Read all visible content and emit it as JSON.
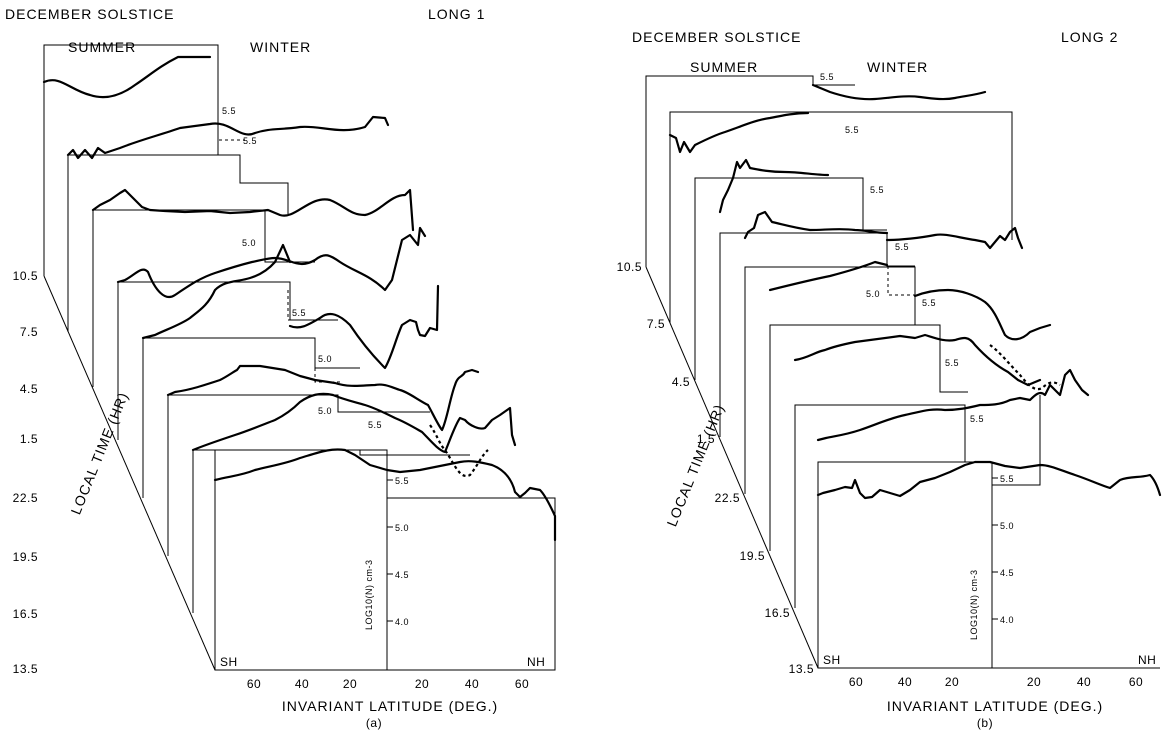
{
  "chart_data": [
    {
      "type": "line",
      "panel": "(a)",
      "title": "DECEMBER   SOLSTICE",
      "longitude_label": "LONG  1",
      "summer_label": "SUMMER",
      "winter_label": "WINTER",
      "xlabel": "INVARIANT  LATITUDE  (DEG.)",
      "ylabel": "LOCAL  TIME  (HR)",
      "zlabel": "LOG10(N) cm-3",
      "sh_label": "SH",
      "nh_label": "NH",
      "x_ticks": [
        "60",
        "40",
        "20",
        "20",
        "40",
        "60"
      ],
      "z_ticks": [
        "5.5",
        "5.0",
        "4.5",
        "4.0"
      ],
      "local_times": [
        "13.5",
        "16.5",
        "19.5",
        "22.5",
        "1.5",
        "4.5",
        "7.5",
        "10.5"
      ],
      "slice_labels": [
        "5.5",
        "5.0",
        "5.5",
        "5.0",
        "5.0",
        "5.5",
        "5.5",
        "5.5"
      ],
      "ylim": [
        3.8,
        5.7
      ],
      "series": [
        {
          "local_time": "13.5",
          "invariant_latitude": [
            -70,
            -60,
            -50,
            -40,
            -30,
            -20,
            -10,
            0,
            10,
            20,
            30,
            40,
            50,
            60,
            70
          ],
          "log10_density": [
            5.4,
            5.42,
            5.44,
            5.48,
            5.52,
            5.56,
            5.6,
            5.33,
            5.32,
            5.32,
            5.33,
            5.31,
            5.3,
            5.2,
            4.98
          ]
        },
        {
          "local_time": "16.5",
          "invariant_latitude": [
            -70,
            -60,
            -50,
            -40,
            -30,
            -20,
            -10,
            0,
            10,
            20,
            30,
            40,
            50,
            60,
            70
          ],
          "log10_density": [
            5.3,
            5.32,
            5.35,
            5.38,
            5.42,
            5.45,
            5.58,
            5.35,
            5.32,
            5.3,
            5.18,
            4.95,
            5.08,
            5.28,
            5.05
          ]
        },
        {
          "local_time": "19.5",
          "invariant_latitude": [
            -70,
            -60,
            -50,
            -40,
            -30,
            -20,
            -10,
            0,
            10,
            20,
            30,
            40,
            50,
            60,
            70
          ],
          "log10_density": [
            5.5,
            5.52,
            5.52,
            5.55,
            5.56,
            5.58,
            5.52,
            5.46,
            5.44,
            5.43,
            5.42,
            5.3,
            5.05,
            5.55,
            5.55
          ]
        },
        {
          "local_time": "22.5",
          "invariant_latitude": [
            -70,
            -60,
            -50,
            -40,
            -30,
            -20,
            -10,
            0,
            10,
            20,
            30,
            40,
            50,
            60,
            70
          ],
          "log10_density": [
            5.4,
            5.42,
            5.45,
            5.48,
            5.55,
            5.62,
            5.5,
            5.55,
            5.45,
            5.3,
            5.5,
            5.55,
            5.4,
            5.55,
            5.65
          ]
        },
        {
          "local_time": "1.5",
          "invariant_latitude": [
            -70,
            -60,
            -50,
            -40,
            -30,
            -20,
            -10,
            0,
            10,
            20,
            30,
            40,
            50,
            60,
            70
          ],
          "log10_density": [
            5.48,
            5.5,
            5.4,
            5.42,
            5.48,
            5.52,
            5.55,
            5.42,
            5.48,
            5.5,
            5.42,
            5.3,
            5.12,
            5.45,
            5.55
          ]
        },
        {
          "local_time": "4.5",
          "invariant_latitude": [
            -70,
            -60,
            -50,
            -40,
            -30,
            -20,
            -10,
            0,
            10,
            20,
            30,
            40,
            50,
            60,
            70
          ],
          "log10_density": [
            5.55,
            5.56,
            5.58,
            5.55,
            5.54,
            5.55,
            5.5,
            5.4,
            5.38,
            5.42,
            5.4,
            5.3,
            5.35,
            5.45,
            5.55
          ]
        },
        {
          "local_time": "7.5",
          "invariant_latitude": [
            -70,
            -60,
            -50,
            -40,
            -30,
            -20,
            -10,
            0,
            10,
            20,
            30,
            40,
            50,
            60,
            70
          ],
          "log10_density": [
            5.3,
            5.32,
            5.3,
            5.35,
            5.4,
            5.45,
            5.5,
            5.4,
            5.45,
            5.48,
            5.5,
            5.45,
            5.4,
            5.35,
            5.55
          ]
        },
        {
          "local_time": "10.5",
          "invariant_latitude": [
            -70,
            -60,
            -50,
            -40,
            -30,
            -20,
            -10,
            0,
            10,
            20,
            30,
            40,
            50,
            60,
            70
          ],
          "log10_density": [
            5.55,
            5.52,
            5.48,
            5.46,
            5.5,
            5.55,
            5.6,
            5.4,
            5.42,
            5.45,
            5.45,
            5.44,
            5.45,
            5.42,
            5.45
          ]
        }
      ],
      "caption": "(a)"
    },
    {
      "type": "line",
      "panel": "(b)",
      "title": "DECEMBER   SOLSTICE",
      "longitude_label": "LONG  2",
      "summer_label": "SUMMER",
      "winter_label": "WINTER",
      "xlabel": "INVARIANT  LATITUDE  (DEG.)",
      "ylabel": "LOCAL  TIME  (HR)",
      "zlabel": "LOG10(N) cm-3",
      "sh_label": "SH",
      "nh_label": "NH",
      "x_ticks": [
        "60",
        "40",
        "20",
        "20",
        "40",
        "60"
      ],
      "z_ticks": [
        "5.5",
        "5.0",
        "4.5",
        "4.0"
      ],
      "local_times": [
        "13.5",
        "16.5",
        "19.5",
        "22.5",
        "1.5",
        "4.5",
        "7.5",
        "10.5"
      ],
      "slice_labels": [
        "5.5",
        "5.5",
        "5.5",
        "5.0",
        "5.5",
        "5.5",
        "5.5",
        "5.5"
      ],
      "ylim": [
        3.8,
        5.7
      ],
      "series": [
        {
          "local_time": "13.5",
          "invariant_latitude": [
            -70,
            -60,
            -50,
            -40,
            -30,
            -20,
            -10,
            0,
            10,
            20,
            30,
            40,
            50,
            60,
            70
          ],
          "log10_density": [
            5.55,
            5.45,
            5.4,
            5.48,
            5.52,
            5.55,
            5.62,
            5.6,
            5.52,
            5.46,
            5.42,
            5.4,
            5.45,
            5.48,
            5.4
          ]
        },
        {
          "local_time": "16.5",
          "invariant_latitude": [
            -70,
            -60,
            -50,
            -40,
            -30,
            -20,
            -10,
            0,
            10,
            20,
            30,
            40,
            50,
            60,
            70
          ],
          "log10_density": [
            5.4,
            5.42,
            5.44,
            5.46,
            5.5,
            5.55,
            5.58,
            5.52,
            5.5,
            5.48,
            5.45,
            5.4,
            5.42,
            5.4,
            5.38
          ]
        },
        {
          "local_time": "19.5",
          "invariant_latitude": [
            -70,
            -60,
            -50,
            -40,
            -30,
            -20,
            -10,
            0,
            10,
            20,
            30,
            40,
            50,
            60,
            70
          ],
          "log10_density": [
            5.42,
            5.44,
            5.5,
            5.52,
            5.55,
            5.58,
            5.56,
            5.5,
            5.46,
            5.44,
            5.4,
            5.32,
            5.45,
            5.4,
            5.35
          ]
        },
        {
          "local_time": "22.5",
          "invariant_latitude": [
            -70,
            -60,
            -50,
            -40,
            -30,
            -20,
            -10,
            0,
            10,
            20,
            30,
            40,
            50,
            60,
            70
          ],
          "log10_density": [
            5.5,
            5.52,
            5.54,
            5.55,
            5.56,
            5.58,
            5.56,
            5.5,
            5.4,
            5.3,
            5.35,
            5.3,
            5.2,
            5.38,
            5.3
          ]
        },
        {
          "local_time": "1.5",
          "invariant_latitude": [
            -70,
            -60,
            -50,
            -40,
            -30,
            -20,
            -10,
            0,
            10,
            20,
            30,
            40,
            50,
            60,
            70
          ],
          "log10_density": [
            5.52,
            5.55,
            5.56,
            5.54,
            5.55,
            5.58,
            5.52,
            5.5,
            5.54,
            5.48,
            5.35,
            5.25,
            5.35,
            5.3,
            5.4
          ]
        },
        {
          "local_time": "4.5",
          "invariant_latitude": [
            -70,
            -60,
            -50,
            -40,
            -30,
            -20,
            -10,
            0,
            10,
            20,
            30,
            40,
            50,
            60,
            70
          ],
          "log10_density": [
            5.45,
            5.6,
            5.58,
            5.55,
            5.52,
            5.5,
            5.52,
            5.45,
            5.4,
            5.42,
            5.45,
            5.38,
            5.35,
            5.4,
            5.5
          ]
        },
        {
          "local_time": "7.5",
          "invariant_latitude": [
            -70,
            -60,
            -50,
            -40,
            -30,
            -20,
            -10,
            0,
            10,
            20,
            30,
            40,
            50,
            60,
            70
          ],
          "log10_density": [
            5.2,
            5.55,
            5.5,
            5.48,
            5.5,
            5.52,
            5.5,
            5.4,
            5.4,
            5.42,
            5.44,
            5.42,
            5.4,
            5.35,
            5.45
          ]
        },
        {
          "local_time": "10.5",
          "invariant_latitude": [
            -70,
            -60,
            -50,
            -40,
            -30,
            -20,
            -10,
            0,
            10,
            20,
            30,
            40,
            50,
            60,
            70
          ],
          "log10_density": [
            5.35,
            5.3,
            5.35,
            5.4,
            5.45,
            5.5,
            5.55,
            5.5,
            5.48,
            5.45,
            5.44,
            5.42,
            5.44,
            5.45,
            5.44
          ]
        }
      ],
      "caption": "(b)"
    }
  ]
}
